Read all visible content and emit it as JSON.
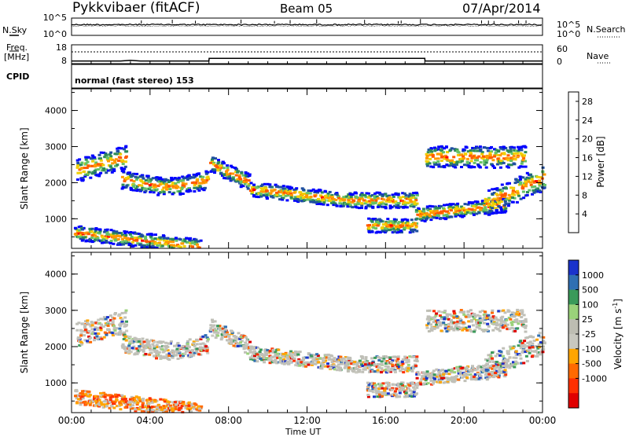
{
  "header": {
    "radar": "Pykkvibaer (fitACF)",
    "beam": "Beam 05",
    "date": "07/Apr/2014"
  },
  "noise_panel": {
    "left_label": "N.Sky",
    "right_label": "N.Search",
    "left_ticks": [
      "10^5",
      "10^0"
    ],
    "right_ticks": [
      "10^5",
      "10^0"
    ]
  },
  "freq_panel": {
    "left_label": "Freq.",
    "left_unit": "[MHz]",
    "right_label": "Nave",
    "left_ticks": [
      "18",
      "8"
    ],
    "right_ticks": [
      "60",
      "0"
    ]
  },
  "cpid_panel": {
    "label": "CPID",
    "mode": "normal (fast stereo) 153"
  },
  "colors": {
    "power_scale": [
      "#0000ff",
      "#1f4fa0",
      "#2e8b57",
      "#66c266",
      "#f0d000",
      "#ff9900",
      "#ff5a00",
      "#ff0000"
    ],
    "velocity_scale": [
      "#1a33cc",
      "#2f6fb3",
      "#3a9a5a",
      "#9ad27a",
      "#bdbdb2",
      "#c8c8bf",
      "#ffa500",
      "#ff6a00",
      "#ff3000",
      "#e00000"
    ],
    "ground_scatter": "#c0c0b8"
  },
  "chart_data": [
    {
      "type": "heatmap",
      "title": "Power",
      "xlabel": "Time UT",
      "ylabel": "Slant Range [km]",
      "x_ticks": [
        "00:00",
        "04:00",
        "08:00",
        "12:00",
        "16:00",
        "20:00",
        "00:00"
      ],
      "y_ticks": [
        "1000",
        "2000",
        "3000",
        "4000"
      ],
      "ylim": [
        180,
        4600
      ],
      "xlim_hours": [
        0,
        24
      ],
      "colorbar_label": "Power [dB]",
      "colorbar_ticks": [
        "4",
        "8",
        "12",
        "16",
        "20",
        "24",
        "28"
      ],
      "colorbar_range": [
        0,
        30
      ]
    },
    {
      "type": "heatmap",
      "title": "Velocity",
      "xlabel": "Time UT",
      "ylabel": "Slant Range [km]",
      "x_ticks": [
        "00:00",
        "04:00",
        "08:00",
        "12:00",
        "16:00",
        "20:00",
        "00:00"
      ],
      "y_ticks": [
        "1000",
        "2000",
        "3000",
        "4000"
      ],
      "ylim": [
        180,
        4600
      ],
      "xlim_hours": [
        0,
        24
      ],
      "colorbar_label": "Velocity [m s^-1]",
      "colorbar_ticks": [
        "1000",
        "500",
        "100",
        "25",
        "-25",
        "-100",
        "-500",
        "-1000"
      ]
    },
    {
      "type": "line",
      "title": "Frequency",
      "series": [
        {
          "x": [
            0,
            2.5,
            3,
            3.5,
            7,
            7.01,
            18,
            18.01,
            24
          ],
          "values": [
            10,
            10,
            10.5,
            10,
            10,
            12,
            12,
            10,
            10
          ]
        }
      ]
    }
  ]
}
